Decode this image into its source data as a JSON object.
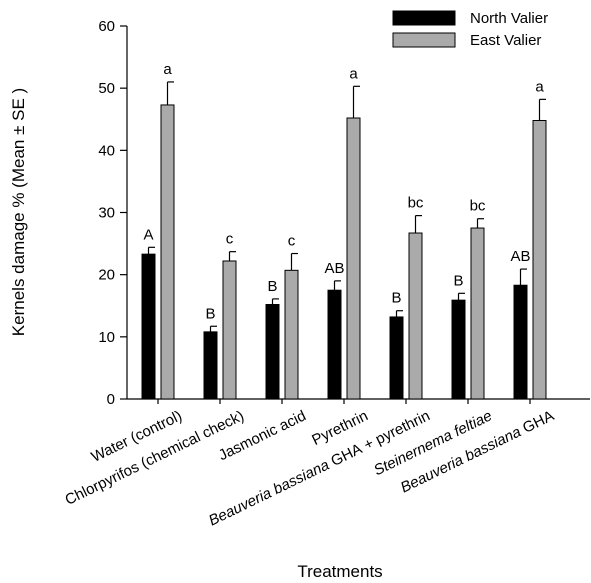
{
  "chart_data": {
    "type": "bar",
    "xlabel": "Treatments",
    "ylabel": "Kernels damage % (Mean ± SE )",
    "ylim": [
      0,
      60
    ],
    "yticks": [
      0,
      10,
      20,
      30,
      40,
      50,
      60
    ],
    "grid": false,
    "legend_position": "top-right",
    "categories": [
      {
        "label": "Water (control)",
        "italic": false
      },
      {
        "label": "Chlorpyrifos (chemical check)",
        "italic": false
      },
      {
        "label": "Jasmonic acid",
        "italic": false
      },
      {
        "label": "Pyrethrin",
        "italic": false
      },
      {
        "label": "Beauveria bassiana GHA + pyrethrin",
        "italic_part": "Beauveria bassiana",
        "plain_part": " GHA + pyrethrin"
      },
      {
        "label": "Steinernema feltiae",
        "italic": true
      },
      {
        "label": "Beauveria bassiana GHA",
        "italic_part": "Beauveria bassiana",
        "plain_part": " GHA"
      }
    ],
    "series": [
      {
        "name": "North Valier",
        "color": "#000000",
        "values": [
          23.3,
          10.8,
          15.2,
          17.5,
          13.2,
          15.9,
          18.3
        ],
        "errors": [
          1.1,
          0.9,
          0.9,
          1.5,
          1.0,
          1.1,
          2.6
        ],
        "letters": [
          "A",
          "B",
          "B",
          "AB",
          "B",
          "B",
          "AB"
        ]
      },
      {
        "name": "East Valier",
        "color": "#aaaaaa",
        "values": [
          47.3,
          22.2,
          20.7,
          45.2,
          26.7,
          27.5,
          44.8
        ],
        "errors": [
          3.7,
          1.5,
          2.7,
          5.1,
          2.8,
          1.5,
          3.4
        ],
        "letters": [
          "a",
          "c",
          "c",
          "a",
          "bc",
          "bc",
          "a"
        ]
      }
    ]
  }
}
